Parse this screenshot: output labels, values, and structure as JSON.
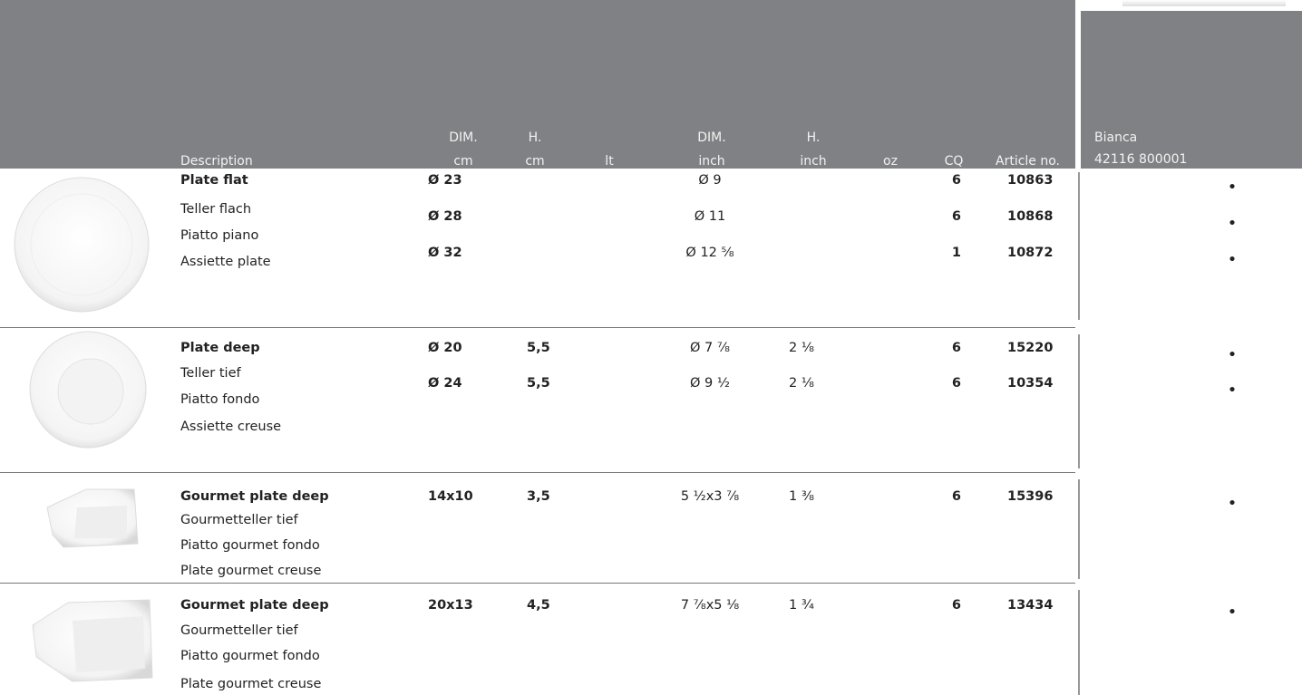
{
  "header": {
    "columns": [
      [
        "Description"
      ],
      [
        "DIM.",
        "cm"
      ],
      [
        "H.",
        "cm"
      ],
      [
        "lt"
      ],
      [
        "DIM.",
        "inch"
      ],
      [
        "H.",
        "inch"
      ],
      [
        "oz"
      ],
      [
        "CQ"
      ],
      [
        "Article no."
      ],
      [
        "Bianca",
        "42116 800001"
      ]
    ]
  },
  "groups": [
    {
      "description": [
        "Plate flat",
        "Teller flach",
        "Piatto piano",
        "Assiette plate"
      ],
      "rows": [
        {
          "dim_cm": "Ø 23",
          "dim_inch": "Ø 9",
          "cq": 6,
          "article": 10863,
          "mark": "•"
        },
        {
          "dim_cm": "Ø 28",
          "dim_inch": "Ø 11",
          "cq": 6,
          "article": 10868,
          "mark": "•"
        },
        {
          "dim_cm": "Ø 32",
          "dim_inch": "Ø 12 ⅝",
          "cq": 1,
          "article": 10872,
          "mark": "•"
        }
      ]
    },
    {
      "description": [
        "Plate deep",
        "Teller tief",
        "Piatto fondo",
        "Assiette creuse"
      ],
      "rows": [
        {
          "dim_cm": "Ø 20",
          "h_cm": "5,5",
          "dim_inch": "Ø 7 ⅞",
          "h_inch": "2 ⅛",
          "cq": 6,
          "article": 15220,
          "mark": "•"
        },
        {
          "dim_cm": "Ø 24",
          "h_cm": "5,5",
          "dim_inch": "Ø 9 ½",
          "h_inch": "2 ⅛",
          "cq": 6,
          "article": 10354,
          "mark": "•"
        }
      ]
    },
    {
      "description": [
        "Gourmet plate deep",
        "Gourmetteller tief",
        "Piatto gourmet fondo",
        "Plate gourmet creuse"
      ],
      "rows": [
        {
          "dim_cm": "14x10",
          "h_cm": "3,5",
          "dim_inch": "5 ½x3 ⅞",
          "h_inch": "1 ⅜",
          "cq": 6,
          "article": 15396,
          "mark": "•"
        }
      ]
    },
    {
      "description": [
        "Gourmet plate deep",
        "Gourmetteller tief",
        "Piatto gourmet fondo",
        "Plate gourmet creuse"
      ],
      "rows": [
        {
          "dim_cm": "20x13",
          "h_cm": "4,5",
          "dim_inch": "7 ⅞x5 ⅛",
          "h_inch": "1 ¾",
          "cq": 6,
          "article": 13434,
          "mark": "•"
        }
      ]
    }
  ]
}
